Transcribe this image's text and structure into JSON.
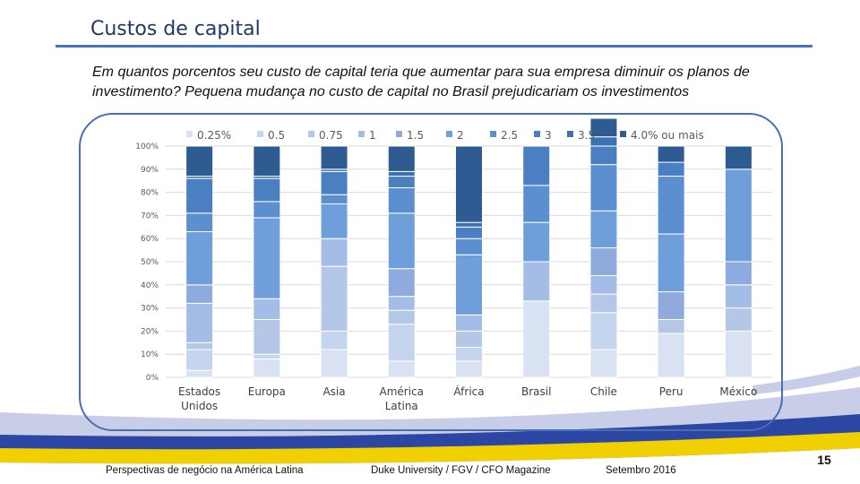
{
  "slide": {
    "title": "Custos de capital",
    "question": "Em quantos porcentos seu custo de capital teria que aumentar para sua empresa diminuir os planos de investimento? Pequena mudança no custo de capital no Brasil prejudicariam os investimentos",
    "footer_left": "Perspectivas de negócio na América Latina",
    "footer_center": "Duke University / FGV / CFO Magazine",
    "footer_right": "Setembro 2016",
    "page_number": "15"
  },
  "colors": {
    "title": "#1f3864",
    "rule": "#4472c4",
    "frame": "#4a6fb0",
    "deco_blue": "#2b47a3",
    "deco_yellow": "#f0d000",
    "deco_light": "#c8cde8"
  },
  "chart_data": {
    "type": "bar",
    "stacked": true,
    "normalized": true,
    "categories": [
      "Estados Unidos",
      "Europa",
      "Asia",
      "América Latina",
      "África",
      "Brasil",
      "Chile",
      "Peru",
      "México"
    ],
    "category_lines": [
      [
        "Estados",
        "Unidos"
      ],
      [
        "Europa"
      ],
      [
        "Asia"
      ],
      [
        "América",
        "Latina"
      ],
      [
        "África"
      ],
      [
        "Brasil"
      ],
      [
        "Chile"
      ],
      [
        "Peru"
      ],
      [
        "México"
      ]
    ],
    "yticks": [
      "0%",
      "10%",
      "20%",
      "30%",
      "40%",
      "50%",
      "60%",
      "70%",
      "80%",
      "90%",
      "100%"
    ],
    "ylim": [
      0,
      100
    ],
    "legend_position": "top",
    "series": [
      {
        "name": "0.25%",
        "color": "#d9e2f3",
        "values": [
          3,
          8,
          12,
          7,
          7,
          33,
          12,
          19,
          20
        ]
      },
      {
        "name": "0.5",
        "color": "#c5d5ee",
        "values": [
          9,
          2,
          8,
          16,
          6,
          0,
          16,
          0,
          0
        ]
      },
      {
        "name": "0.75",
        "color": "#b4c7e7",
        "values": [
          3,
          15,
          28,
          6,
          7,
          0,
          8,
          6,
          10
        ]
      },
      {
        "name": "1",
        "color": "#a4bde6",
        "values": [
          17,
          9,
          12,
          6,
          7,
          17,
          8,
          0,
          10
        ]
      },
      {
        "name": "1.5",
        "color": "#8faadc",
        "values": [
          8,
          0,
          0,
          12,
          0,
          0,
          12,
          12,
          10
        ]
      },
      {
        "name": "2",
        "color": "#6f9fdb",
        "values": [
          23,
          35,
          15,
          24,
          26,
          17,
          16,
          25,
          40
        ]
      },
      {
        "name": "2.5",
        "color": "#5b8fd0",
        "values": [
          8,
          7,
          4,
          11,
          7,
          16,
          20,
          25,
          0
        ]
      },
      {
        "name": "3",
        "color": "#4a7fc1",
        "values": [
          15,
          10,
          10,
          5,
          5,
          17,
          8,
          6,
          0
        ]
      },
      {
        "name": "3.5",
        "color": "#3e70b4",
        "values": [
          1,
          1,
          1,
          2,
          2,
          0,
          4,
          0,
          0
        ]
      },
      {
        "name": "4.0% ou mais",
        "color": "#2e5b92",
        "values": [
          13,
          13,
          10,
          11,
          33,
          0,
          8,
          7,
          10
        ]
      }
    ]
  }
}
